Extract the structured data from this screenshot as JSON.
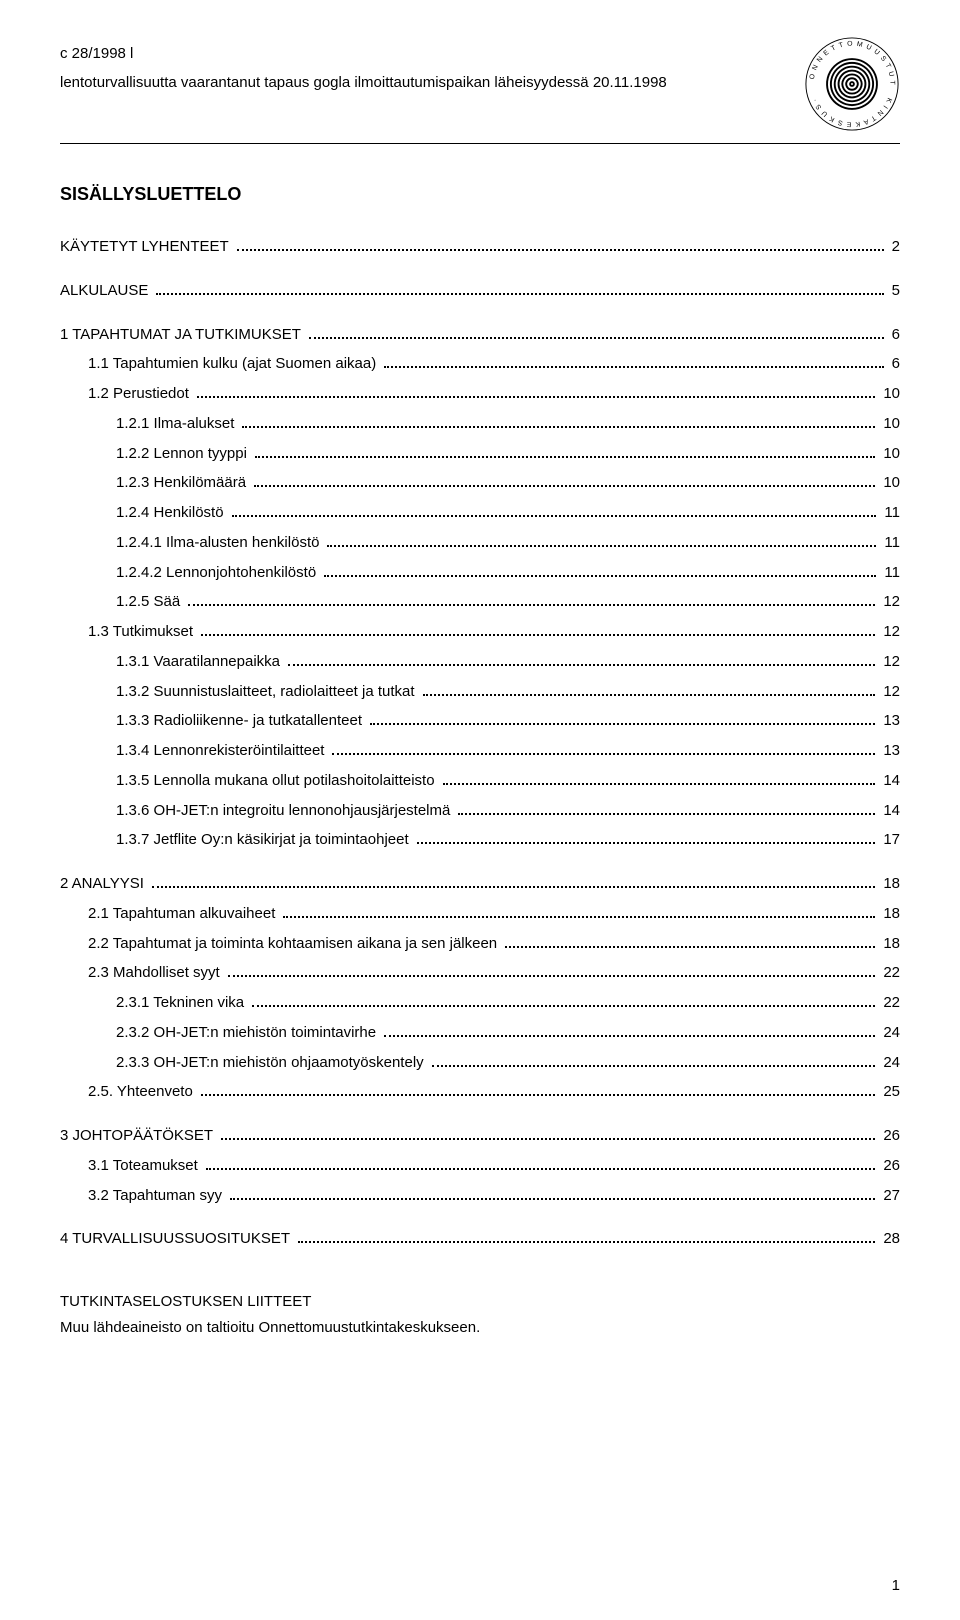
{
  "header": {
    "doc_id": "c 28/1998 l",
    "subtitle": "lentoturvallisuutta vaarantanut tapaus gogla ilmoittautumispaikan läheisyydessä 20.11.1998"
  },
  "main_title": "SISÄLLYSLUETTELO",
  "toc": [
    {
      "label": "KÄYTETYT LYHENTEET",
      "page": "2",
      "indent": 0,
      "gap_before": false
    },
    {
      "label": "ALKULAUSE",
      "page": "5",
      "indent": 0,
      "gap_before": true
    },
    {
      "label": "1 TAPAHTUMAT JA TUTKIMUKSET",
      "page": "6",
      "indent": 0,
      "gap_before": true
    },
    {
      "label": "1.1 Tapahtumien kulku (ajat Suomen aikaa)",
      "page": "6",
      "indent": 1,
      "gap_before": false
    },
    {
      "label": "1.2 Perustiedot",
      "page": "10",
      "indent": 1,
      "gap_before": false
    },
    {
      "label": "1.2.1 Ilma-alukset",
      "page": "10",
      "indent": 2,
      "gap_before": false
    },
    {
      "label": "1.2.2 Lennon tyyppi",
      "page": "10",
      "indent": 2,
      "gap_before": false
    },
    {
      "label": "1.2.3 Henkilömäärä",
      "page": "10",
      "indent": 2,
      "gap_before": false
    },
    {
      "label": "1.2.4 Henkilöstö",
      "page": "11",
      "indent": 2,
      "gap_before": false
    },
    {
      "label": "1.2.4.1 Ilma-alusten henkilöstö",
      "page": "11",
      "indent": 2,
      "gap_before": false
    },
    {
      "label": "1.2.4.2 Lennonjohtohenkilöstö",
      "page": "11",
      "indent": 2,
      "gap_before": false
    },
    {
      "label": "1.2.5 Sää",
      "page": "12",
      "indent": 2,
      "gap_before": false
    },
    {
      "label": "1.3 Tutkimukset",
      "page": "12",
      "indent": 1,
      "gap_before": false
    },
    {
      "label": "1.3.1 Vaaratilannepaikka",
      "page": "12",
      "indent": 2,
      "gap_before": false
    },
    {
      "label": "1.3.2 Suunnistuslaitteet, radiolaitteet ja tutkat",
      "page": "12",
      "indent": 2,
      "gap_before": false
    },
    {
      "label": "1.3.3 Radioliikenne- ja tutkatallenteet",
      "page": "13",
      "indent": 2,
      "gap_before": false
    },
    {
      "label": "1.3.4 Lennonrekisteröintilaitteet",
      "page": "13",
      "indent": 2,
      "gap_before": false
    },
    {
      "label": "1.3.5 Lennolla mukana ollut potilashoitolaitteisto",
      "page": "14",
      "indent": 2,
      "gap_before": false
    },
    {
      "label": "1.3.6 OH-JET:n integroitu lennonohjausjärjestelmä",
      "page": "14",
      "indent": 2,
      "gap_before": false
    },
    {
      "label": "1.3.7 Jetflite Oy:n käsikirjat ja toimintaohjeet",
      "page": "17",
      "indent": 2,
      "gap_before": false
    },
    {
      "label": "2 ANALYYSI",
      "page": "18",
      "indent": 0,
      "gap_before": true
    },
    {
      "label": "2.1 Tapahtuman alkuvaiheet",
      "page": "18",
      "indent": 1,
      "gap_before": false
    },
    {
      "label": "2.2 Tapahtumat ja toiminta kohtaamisen aikana ja sen jälkeen",
      "page": "18",
      "indent": 1,
      "gap_before": false
    },
    {
      "label": "2.3 Mahdolliset syyt",
      "page": "22",
      "indent": 1,
      "gap_before": false
    },
    {
      "label": "2.3.1 Tekninen vika",
      "page": "22",
      "indent": 2,
      "gap_before": false
    },
    {
      "label": "2.3.2 OH-JET:n miehistön toimintavirhe",
      "page": "24",
      "indent": 2,
      "gap_before": false
    },
    {
      "label": "2.3.3 OH-JET:n miehistön ohjaamotyöskentely",
      "page": "24",
      "indent": 2,
      "gap_before": false
    },
    {
      "label": "2.5. Yhteenveto",
      "page": "25",
      "indent": 1,
      "gap_before": false
    },
    {
      "label": "3 JOHTOPÄÄTÖKSET",
      "page": "26",
      "indent": 0,
      "gap_before": true
    },
    {
      "label": "3.1 Toteamukset",
      "page": "26",
      "indent": 1,
      "gap_before": false
    },
    {
      "label": "3.2 Tapahtuman syy",
      "page": "27",
      "indent": 1,
      "gap_before": false
    },
    {
      "label": "4 TURVALLISUUSSUOSITUKSET",
      "page": "28",
      "indent": 0,
      "gap_before": true
    }
  ],
  "appendix": {
    "title": "TUTKINTASELOSTUKSEN LIITTEET",
    "note": "Muu lähdeaineisto on taltioitu Onnettomuustutkintakeskukseen."
  },
  "footer": {
    "page_number": "1"
  },
  "seal": {
    "outer_text_top": "· O N N E T T O M U U S T U T",
    "outer_text_bottom": "K I N T A K E S K U S ·",
    "stroke": "#000000",
    "size": 96
  }
}
